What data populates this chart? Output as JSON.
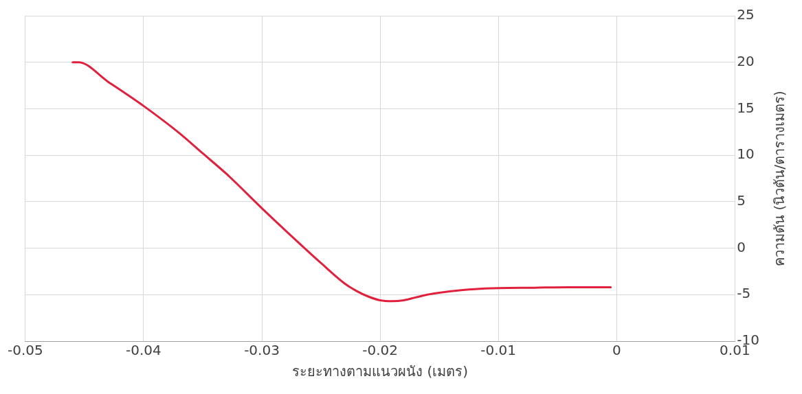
{
  "chart_data": {
    "type": "line",
    "xlabel": "ระยะทางตามแนวผนัง (เมตร)",
    "ylabel": "ความดัน (นิวตัน/ตารางเมตร)",
    "xlim": [
      -0.05,
      0.01
    ],
    "xticks": [
      -0.05,
      -0.04,
      -0.03,
      -0.02,
      -0.01,
      0,
      0.01
    ],
    "ylim": [
      -10,
      25
    ],
    "yticks": [
      -10,
      -5,
      0,
      5,
      10,
      15,
      20,
      25
    ],
    "grid": true,
    "legend": false,
    "marker": "none",
    "line_style": "solid",
    "series": [
      {
        "color": "#e0203c",
        "x": [
          -0.046,
          -0.0455,
          -0.043,
          -0.04,
          -0.037,
          -0.035,
          -0.033,
          -0.03,
          -0.028,
          -0.025,
          -0.023,
          -0.022,
          -0.021,
          -0.02,
          -0.019,
          -0.018,
          -0.017,
          -0.016,
          -0.015,
          -0.013,
          -0.012,
          -0.01,
          -0.007,
          -0.004,
          -0.0005
        ],
        "values": [
          20,
          20,
          17.9,
          15.3,
          12.4,
          10.2,
          8,
          4.3,
          1.9,
          -1.6,
          -3.8,
          -4.6,
          -5.2,
          -5.6,
          -5.7,
          -5.6,
          -5.3,
          -5,
          -4.8,
          -4.5,
          -4.4,
          -4.3,
          -4.25,
          -4.2,
          -4.2
        ]
      }
    ]
  }
}
